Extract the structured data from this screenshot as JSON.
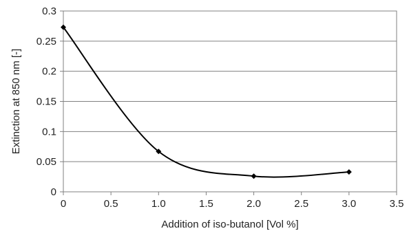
{
  "chart_data": {
    "type": "line",
    "title": "",
    "xlabel": "Addition of iso-butanol [Vol %]",
    "ylabel": "Extinction at 850 nm [-]",
    "xlim": [
      0,
      3.5
    ],
    "ylim": [
      0,
      0.3
    ],
    "xticks": [
      0,
      0.5,
      1.0,
      1.5,
      2.0,
      2.5,
      3.0,
      3.5
    ],
    "xtick_labels": [
      "0",
      "0.5",
      "1.0",
      "1.5",
      "2.0",
      "2.5",
      "3.0",
      "3.5"
    ],
    "yticks": [
      0,
      0.05,
      0.1,
      0.15,
      0.2,
      0.25,
      0.3
    ],
    "ytick_labels": [
      "0",
      "0.05",
      "0.1",
      "0.15",
      "0.2",
      "0.25",
      "0.3"
    ],
    "grid": "horizontal",
    "legend": "none",
    "smooth": true,
    "series": [
      {
        "x": [
          0,
          1.0,
          2.0,
          3.0
        ],
        "y": [
          0.273,
          0.067,
          0.026,
          0.033
        ],
        "color": "#000000",
        "marker": "diamond"
      }
    ]
  }
}
